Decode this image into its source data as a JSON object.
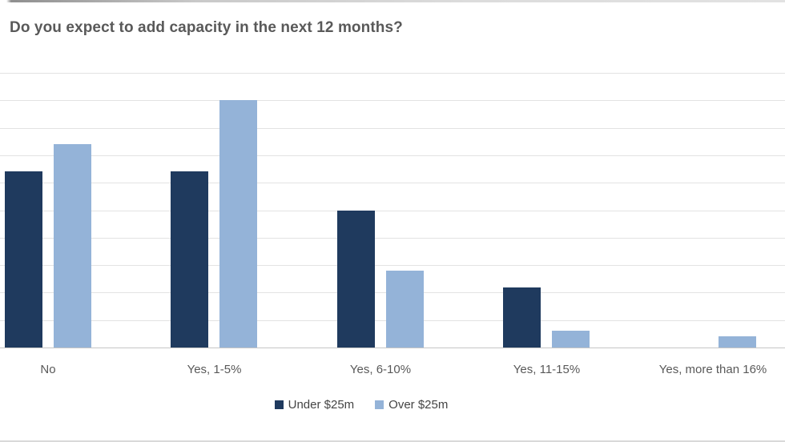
{
  "chart_data": {
    "type": "bar",
    "title": "Do you expect to add capacity in the next 12 months?",
    "categories": [
      "No",
      "Yes, 1-5%",
      "Yes, 6-10%",
      "Yes, 11-15%",
      "Yes, more than 16%"
    ],
    "series": [
      {
        "name": "Under $25m",
        "color": "#1F3A5E",
        "values": [
          32,
          32,
          25,
          11,
          0
        ]
      },
      {
        "name": "Over $25m",
        "color": "#94B3D8",
        "values": [
          37,
          45,
          14,
          3,
          2
        ]
      }
    ],
    "unit": "%",
    "ylim": [
      0,
      50
    ],
    "gridline_step": 5,
    "grid": true,
    "y_axis_labels_visible": false,
    "legend_position": "bottom",
    "xlabel": "",
    "ylabel": ""
  },
  "colors": {
    "title_text": "#595959",
    "axis_label_text": "#595959",
    "legend_text": "#444444",
    "gridline": "#e3e3e3",
    "axis_line": "#c6c6c6"
  }
}
